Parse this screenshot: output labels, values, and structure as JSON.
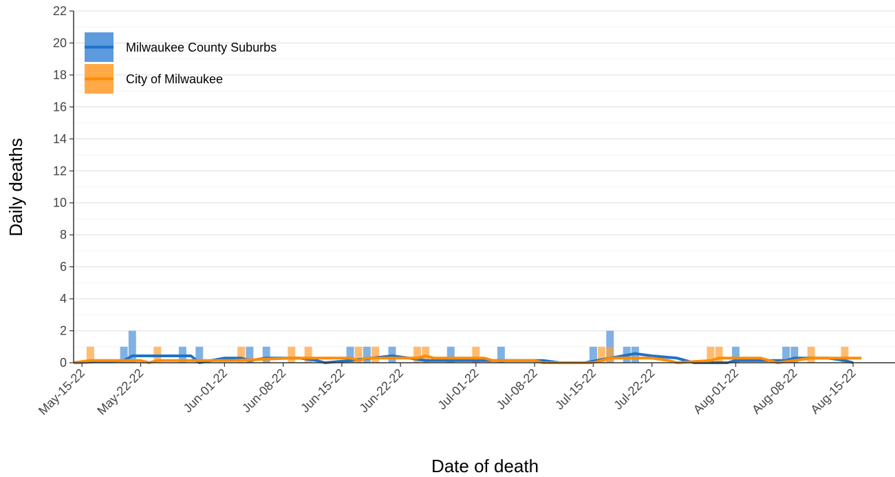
{
  "chart_data": {
    "type": "bar",
    "xlabel": "Date of death",
    "ylabel": "Daily deaths",
    "xlim": [
      "2022-05-14",
      "2022-08-20"
    ],
    "xticks": [
      {
        "value": "2022-05-15",
        "label": "May-15-22"
      },
      {
        "value": "2022-05-22",
        "label": "May-22-22"
      },
      {
        "value": "2022-06-01",
        "label": "Jun-01-22"
      },
      {
        "value": "2022-06-08",
        "label": "Jun-08-22"
      },
      {
        "value": "2022-06-15",
        "label": "Jun-15-22"
      },
      {
        "value": "2022-06-22",
        "label": "Jun-22-22"
      },
      {
        "value": "2022-07-01",
        "label": "Jul-01-22"
      },
      {
        "value": "2022-07-08",
        "label": "Jul-08-22"
      },
      {
        "value": "2022-07-15",
        "label": "Jul-15-22"
      },
      {
        "value": "2022-07-22",
        "label": "Jul-22-22"
      },
      {
        "value": "2022-08-01",
        "label": "Aug-01-22"
      },
      {
        "value": "2022-08-08",
        "label": "Aug-08-22"
      },
      {
        "value": "2022-08-15",
        "label": "Aug-15-22"
      }
    ],
    "ylim": [
      0,
      22
    ],
    "yticks": [
      0,
      2,
      4,
      6,
      8,
      10,
      12,
      14,
      16,
      18,
      20,
      22
    ],
    "yminorticks": [
      1,
      3,
      5,
      7,
      9,
      11,
      13,
      15,
      17,
      19,
      21
    ],
    "grid": true,
    "legend": "top-left",
    "series": [
      {
        "name": "Milwaukee County Suburbs",
        "color": "#4a90d9",
        "line_color": "#1f72c8",
        "x": [
          "2022-05-20",
          "2022-05-21",
          "2022-05-27",
          "2022-05-29",
          "2022-06-04",
          "2022-06-06",
          "2022-06-16",
          "2022-06-18",
          "2022-06-21",
          "2022-06-28",
          "2022-07-04",
          "2022-07-15",
          "2022-07-17",
          "2022-07-19",
          "2022-07-20",
          "2022-08-01",
          "2022-08-07",
          "2022-08-08"
        ],
        "values": [
          1,
          2,
          1,
          1,
          1,
          1,
          1,
          1,
          1,
          1,
          1,
          1,
          2,
          1,
          1,
          1,
          1,
          1
        ],
        "avg_x": [
          "2022-05-14",
          "2022-05-20",
          "2022-05-21",
          "2022-05-28",
          "2022-05-29",
          "2022-06-01",
          "2022-06-03",
          "2022-06-04",
          "2022-06-06",
          "2022-06-10",
          "2022-06-12",
          "2022-06-13",
          "2022-06-16",
          "2022-06-21",
          "2022-06-23",
          "2022-06-25",
          "2022-07-09",
          "2022-07-11",
          "2022-07-14",
          "2022-07-17",
          "2022-07-20",
          "2022-07-22",
          "2022-07-25",
          "2022-07-27",
          "2022-07-31",
          "2022-08-01",
          "2022-08-07",
          "2022-08-08",
          "2022-08-12",
          "2022-08-14",
          "2022-08-15"
        ],
        "avg_values": [
          0,
          0.14,
          0.43,
          0.43,
          0,
          0.29,
          0.29,
          0.14,
          0.29,
          0.29,
          0.14,
          0,
          0.14,
          0.43,
          0.29,
          0.14,
          0.14,
          0,
          0,
          0.29,
          0.57,
          0.43,
          0.29,
          0,
          0,
          0.14,
          0.14,
          0.29,
          0.29,
          0.14,
          0
        ]
      },
      {
        "name": "City of Milwaukee",
        "color": "#ffa033",
        "line_color": "#ff8c00",
        "x": [
          "2022-05-16",
          "2022-05-24",
          "2022-06-03",
          "2022-06-09",
          "2022-06-11",
          "2022-06-17",
          "2022-06-19",
          "2022-06-24",
          "2022-06-25",
          "2022-07-01",
          "2022-07-16",
          "2022-07-17",
          "2022-07-29",
          "2022-07-30",
          "2022-08-10",
          "2022-08-14"
        ],
        "values": [
          1,
          1,
          1,
          1,
          1,
          1,
          1,
          1,
          1,
          1,
          1,
          1,
          1,
          1,
          1,
          1
        ],
        "avg_x": [
          "2022-05-14",
          "2022-05-16",
          "2022-05-22",
          "2022-05-23",
          "2022-05-24",
          "2022-06-02",
          "2022-06-09",
          "2022-06-16",
          "2022-06-17",
          "2022-06-18",
          "2022-06-24",
          "2022-06-25",
          "2022-06-26",
          "2022-07-02",
          "2022-07-03",
          "2022-07-08",
          "2022-07-09",
          "2022-07-15",
          "2022-07-16",
          "2022-07-17",
          "2022-07-22",
          "2022-07-24",
          "2022-07-25",
          "2022-07-29",
          "2022-07-30",
          "2022-08-04",
          "2022-08-05",
          "2022-08-06",
          "2022-08-08",
          "2022-08-10",
          "2022-08-16"
        ],
        "avg_values": [
          0,
          0.14,
          0.14,
          0,
          0.14,
          0.14,
          0.29,
          0.29,
          0.14,
          0.29,
          0.29,
          0.43,
          0.29,
          0.29,
          0.14,
          0.14,
          0,
          0,
          0.14,
          0.29,
          0.29,
          0.14,
          0,
          0.14,
          0.29,
          0.29,
          0.14,
          0,
          0.14,
          0.29,
          0.29
        ]
      }
    ]
  }
}
